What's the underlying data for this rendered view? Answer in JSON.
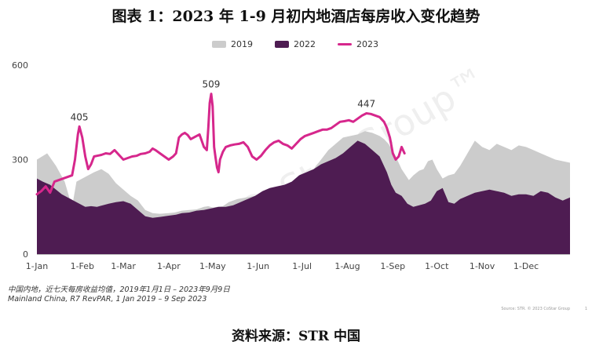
{
  "page": {
    "title": "图表 1：2023 年 1-9 月初内地酒店每房收入变化趋势",
    "note_cn": "中国内地，近七天每房收益均值，2019年1月1日 – 2023年9月9日",
    "note_en": "Mainland China, R7 RevPAR, 1 Jan 2019 – 9 Sep 2023",
    "source_small": "Source: STR. © 2023 CoStar Group",
    "page_number": "1",
    "footer": "资料来源：STR 中国",
    "watermark": "CoStar Group™"
  },
  "colors": {
    "s2019": "#cccccc",
    "s2022": "#4e1c52",
    "s2023": "#d6278c",
    "axis_text": "#444444"
  },
  "chart_data": {
    "type": "area",
    "title": "",
    "xlabel": "",
    "ylabel": "",
    "ylim": [
      0,
      600
    ],
    "yticks": [
      0,
      300,
      600
    ],
    "x_unit": "day of year",
    "xlim": [
      1,
      365
    ],
    "xticks": [
      {
        "label": "1-Jan",
        "day": 1
      },
      {
        "label": "1-Feb",
        "day": 32
      },
      {
        "label": "1-Mar",
        "day": 60
      },
      {
        "label": "1-Apr",
        "day": 91
      },
      {
        "label": "1-May",
        "day": 121
      },
      {
        "label": "1-Jun",
        "day": 152
      },
      {
        "label": "1-Jul",
        "day": 182
      },
      {
        "label": "1-Aug",
        "day": 213
      },
      {
        "label": "1-Sep",
        "day": 244
      },
      {
        "label": "1-Oct",
        "day": 274
      },
      {
        "label": "1-Nov",
        "day": 305
      },
      {
        "label": "1-Dec",
        "day": 335
      }
    ],
    "grid": false,
    "legend_position": "top-center",
    "series": [
      {
        "name": "2019",
        "kind": "area",
        "x": [
          1,
          8,
          14,
          20,
          25,
          28,
          32,
          36,
          40,
          45,
          50,
          55,
          60,
          65,
          70,
          75,
          80,
          85,
          91,
          95,
          100,
          105,
          110,
          115,
          118,
          121,
          124,
          128,
          132,
          138,
          144,
          150,
          155,
          160,
          165,
          170,
          175,
          180,
          185,
          190,
          195,
          200,
          205,
          210,
          215,
          220,
          225,
          230,
          235,
          238,
          241,
          245,
          250,
          255,
          258,
          262,
          265,
          268,
          271,
          274,
          278,
          282,
          286,
          290,
          295,
          300,
          305,
          310,
          315,
          320,
          325,
          330,
          335,
          340,
          345,
          350,
          355,
          360,
          365
        ],
        "values": [
          300,
          320,
          280,
          230,
          150,
          230,
          240,
          250,
          260,
          270,
          255,
          225,
          205,
          185,
          170,
          140,
          130,
          128,
          130,
          132,
          138,
          140,
          142,
          150,
          152,
          148,
          150,
          152,
          165,
          175,
          180,
          185,
          190,
          200,
          210,
          220,
          220,
          230,
          250,
          270,
          300,
          330,
          350,
          370,
          375,
          380,
          390,
          385,
          375,
          365,
          350,
          320,
          270,
          235,
          250,
          265,
          270,
          295,
          300,
          270,
          240,
          250,
          255,
          280,
          320,
          360,
          340,
          330,
          350,
          340,
          330,
          345,
          340,
          330,
          320,
          310,
          300,
          295,
          290
        ]
      },
      {
        "name": "2022",
        "kind": "area",
        "x": [
          1,
          5,
          10,
          14,
          18,
          22,
          26,
          30,
          34,
          38,
          42,
          46,
          50,
          55,
          60,
          65,
          70,
          75,
          80,
          85,
          91,
          96,
          100,
          105,
          110,
          115,
          120,
          125,
          130,
          135,
          140,
          145,
          150,
          155,
          160,
          165,
          170,
          175,
          180,
          185,
          190,
          195,
          200,
          205,
          210,
          215,
          220,
          225,
          230,
          235,
          240,
          243,
          246,
          250,
          254,
          258,
          262,
          266,
          270,
          274,
          278,
          282,
          286,
          290,
          295,
          300,
          305,
          310,
          315,
          320,
          325,
          330,
          335,
          340,
          345,
          350,
          355,
          360,
          365
        ],
        "values": [
          240,
          230,
          220,
          205,
          190,
          180,
          170,
          160,
          150,
          152,
          150,
          155,
          160,
          165,
          168,
          160,
          140,
          120,
          115,
          118,
          122,
          125,
          130,
          132,
          138,
          140,
          145,
          150,
          150,
          155,
          165,
          175,
          185,
          200,
          210,
          215,
          220,
          230,
          250,
          260,
          270,
          285,
          295,
          305,
          320,
          340,
          360,
          350,
          330,
          310,
          260,
          220,
          195,
          185,
          160,
          150,
          155,
          160,
          170,
          200,
          210,
          165,
          160,
          175,
          185,
          195,
          200,
          205,
          200,
          195,
          185,
          190,
          190,
          185,
          200,
          195,
          180,
          170,
          180
        ]
      },
      {
        "name": "2023",
        "kind": "line",
        "x": [
          1,
          4,
          7,
          10,
          13,
          16,
          19,
          22,
          25,
          27,
          29,
          30,
          32,
          34,
          36,
          38,
          40,
          42,
          45,
          48,
          51,
          54,
          57,
          60,
          63,
          66,
          69,
          72,
          75,
          78,
          80,
          82,
          85,
          88,
          91,
          94,
          96,
          98,
          100,
          102,
          104,
          106,
          108,
          110,
          112,
          115,
          117,
          118,
          119,
          120,
          121,
          122,
          123,
          124,
          125,
          126,
          128,
          130,
          133,
          136,
          139,
          142,
          145,
          148,
          151,
          154,
          157,
          160,
          163,
          166,
          169,
          172,
          175,
          178,
          181,
          184,
          187,
          190,
          193,
          196,
          199,
          202,
          205,
          208,
          211,
          214,
          217,
          220,
          223,
          226,
          229,
          232,
          235,
          238,
          240,
          242,
          244,
          246,
          248,
          250,
          252
        ],
        "values": [
          190,
          200,
          215,
          195,
          230,
          235,
          240,
          245,
          250,
          300,
          380,
          405,
          370,
          310,
          270,
          285,
          310,
          312,
          315,
          320,
          318,
          330,
          315,
          300,
          305,
          310,
          312,
          318,
          320,
          325,
          335,
          330,
          320,
          310,
          300,
          310,
          320,
          370,
          380,
          385,
          378,
          365,
          370,
          375,
          380,
          340,
          330,
          400,
          480,
          509,
          470,
          340,
          305,
          275,
          260,
          300,
          325,
          340,
          345,
          348,
          350,
          355,
          340,
          310,
          300,
          312,
          330,
          345,
          355,
          360,
          350,
          345,
          335,
          350,
          365,
          375,
          380,
          385,
          390,
          395,
          395,
          400,
          410,
          420,
          422,
          425,
          420,
          430,
          440,
          447,
          445,
          440,
          435,
          420,
          400,
          370,
          320,
          300,
          310,
          340,
          320
        ]
      }
    ],
    "annotations": [
      {
        "text": "405",
        "series": "2023",
        "x": 30,
        "y": 405
      },
      {
        "text": "509",
        "series": "2023",
        "x": 120,
        "y": 509
      },
      {
        "text": "447",
        "series": "2023",
        "x": 226,
        "y": 447
      }
    ]
  }
}
